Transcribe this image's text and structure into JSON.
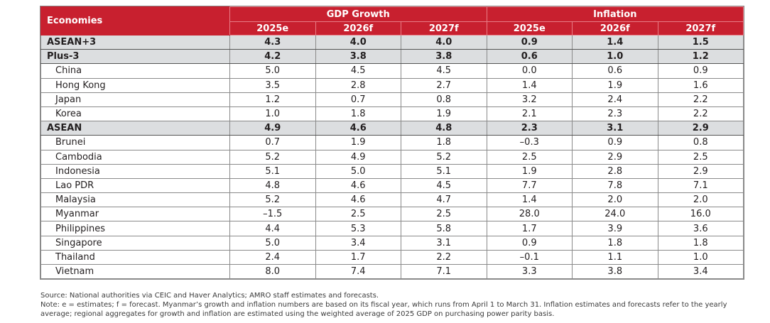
{
  "table": {
    "header": {
      "economies_label": "Economies",
      "groups": [
        {
          "label": "GDP Growth",
          "years": [
            "2025e",
            "2026f",
            "2027f"
          ]
        },
        {
          "label": "Inflation",
          "years": [
            "2025e",
            "2026f",
            "2027f"
          ]
        }
      ]
    },
    "rows": [
      {
        "name": "ASEAN+3",
        "aggregate": true,
        "gdp": [
          "4.3",
          "4.0",
          "4.0"
        ],
        "inflation": [
          "0.9",
          "1.4",
          "1.5"
        ]
      },
      {
        "name": "Plus-3",
        "aggregate": true,
        "gdp": [
          "4.2",
          "3.8",
          "3.8"
        ],
        "inflation": [
          "0.6",
          "1.0",
          "1.2"
        ]
      },
      {
        "name": "China",
        "aggregate": false,
        "gdp": [
          "5.0",
          "4.5",
          "4.5"
        ],
        "inflation": [
          "0.0",
          "0.6",
          "0.9"
        ]
      },
      {
        "name": "Hong Kong",
        "aggregate": false,
        "gdp": [
          "3.5",
          "2.8",
          "2.7"
        ],
        "inflation": [
          "1.4",
          "1.9",
          "1.6"
        ]
      },
      {
        "name": "Japan",
        "aggregate": false,
        "gdp": [
          "1.2",
          "0.7",
          "0.8"
        ],
        "inflation": [
          "3.2",
          "2.4",
          "2.2"
        ]
      },
      {
        "name": "Korea",
        "aggregate": false,
        "gdp": [
          "1.0",
          "1.8",
          "1.9"
        ],
        "inflation": [
          "2.1",
          "2.3",
          "2.2"
        ]
      },
      {
        "name": "ASEAN",
        "aggregate": true,
        "gdp": [
          "4.9",
          "4.6",
          "4.8"
        ],
        "inflation": [
          "2.3",
          "3.1",
          "2.9"
        ]
      },
      {
        "name": "Brunei",
        "aggregate": false,
        "gdp": [
          "0.7",
          "1.9",
          "1.8"
        ],
        "inflation": [
          "–0.3",
          "0.9",
          "0.8"
        ]
      },
      {
        "name": "Cambodia",
        "aggregate": false,
        "gdp": [
          "5.2",
          "4.9",
          "5.2"
        ],
        "inflation": [
          "2.5",
          "2.9",
          "2.5"
        ]
      },
      {
        "name": "Indonesia",
        "aggregate": false,
        "gdp": [
          "5.1",
          "5.0",
          "5.1"
        ],
        "inflation": [
          "1.9",
          "2.8",
          "2.9"
        ]
      },
      {
        "name": "Lao PDR",
        "aggregate": false,
        "gdp": [
          "4.8",
          "4.6",
          "4.5"
        ],
        "inflation": [
          "7.7",
          "7.8",
          "7.1"
        ]
      },
      {
        "name": "Malaysia",
        "aggregate": false,
        "gdp": [
          "5.2",
          "4.6",
          "4.7"
        ],
        "inflation": [
          "1.4",
          "2.0",
          "2.0"
        ]
      },
      {
        "name": "Myanmar",
        "aggregate": false,
        "gdp": [
          "–1.5",
          "2.5",
          "2.5"
        ],
        "inflation": [
          "28.0",
          "24.0",
          "16.0"
        ]
      },
      {
        "name": "Philippines",
        "aggregate": false,
        "separator_above": true,
        "gdp": [
          "4.4",
          "5.3",
          "5.8"
        ],
        "inflation": [
          "1.7",
          "3.9",
          "3.6"
        ]
      },
      {
        "name": "Singapore",
        "aggregate": false,
        "gdp": [
          "5.0",
          "3.4",
          "3.1"
        ],
        "inflation": [
          "0.9",
          "1.8",
          "1.8"
        ]
      },
      {
        "name": "Thailand",
        "aggregate": false,
        "gdp": [
          "2.4",
          "1.7",
          "2.2"
        ],
        "inflation": [
          "–0.1",
          "1.1",
          "1.0"
        ]
      },
      {
        "name": "Vietnam",
        "aggregate": false,
        "gdp": [
          "8.0",
          "7.4",
          "7.1"
        ],
        "inflation": [
          "3.3",
          "3.8",
          "3.4"
        ]
      }
    ]
  },
  "notes": {
    "source": "Source: National authorities via CEIC and Haver Analytics; AMRO staff estimates and forecasts.",
    "note": "Note: e = estimates; f = forecast. Myanmar’s growth and inflation numbers are based on its fiscal year, which runs from April 1 to March 31. Inflation estimates and forecasts refer to the yearly average; regional aggregates for growth and inflation are estimated using the weighted average of 2025 GDP on purchasing power parity basis."
  },
  "colors": {
    "header_red": "#c8202f",
    "aggregate_row_gray": "#dcdee0"
  }
}
